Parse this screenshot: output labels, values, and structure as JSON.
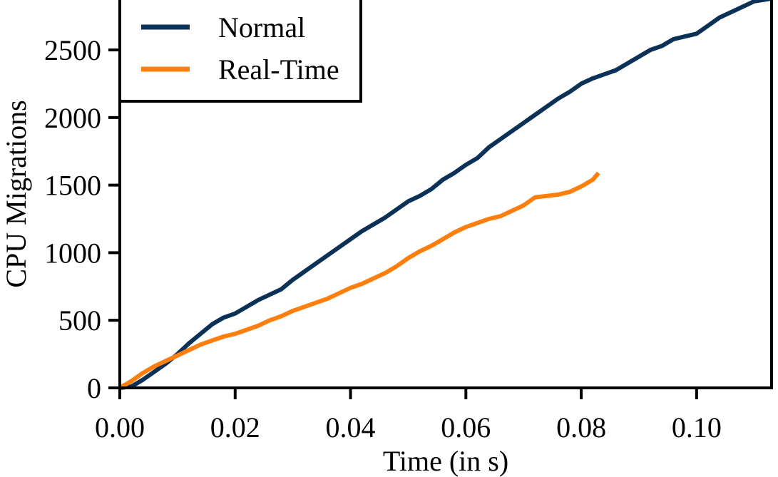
{
  "chart_data": {
    "type": "line",
    "xlabel": "Time (in s)",
    "ylabel": "CPU Migrations",
    "xlim": [
      0,
      0.113
    ],
    "ylim": [
      0,
      2880
    ],
    "xticks": [
      0.0,
      0.02,
      0.04,
      0.06,
      0.08,
      0.1
    ],
    "xtick_labels": [
      "0.00",
      "0.02",
      "0.04",
      "0.06",
      "0.08",
      "0.10"
    ],
    "yticks": [
      0,
      500,
      1000,
      1500,
      2000,
      2500
    ],
    "ytick_labels": [
      "0",
      "500",
      "1000",
      "1500",
      "2000",
      "2500"
    ],
    "grid": false,
    "legend_position": "top-left",
    "series": [
      {
        "name": "Normal",
        "color": "#0b3157",
        "x": [
          0.0,
          0.002,
          0.004,
          0.006,
          0.008,
          0.01,
          0.012,
          0.014,
          0.016,
          0.018,
          0.02,
          0.022,
          0.024,
          0.026,
          0.028,
          0.03,
          0.032,
          0.034,
          0.036,
          0.038,
          0.04,
          0.042,
          0.044,
          0.046,
          0.048,
          0.05,
          0.052,
          0.054,
          0.056,
          0.058,
          0.06,
          0.062,
          0.064,
          0.066,
          0.068,
          0.07,
          0.072,
          0.074,
          0.076,
          0.078,
          0.08,
          0.082,
          0.084,
          0.086,
          0.088,
          0.09,
          0.092,
          0.094,
          0.096,
          0.098,
          0.1,
          0.102,
          0.104,
          0.106,
          0.108,
          0.11,
          0.113
        ],
        "y": [
          0,
          10,
          60,
          120,
          180,
          250,
          330,
          400,
          470,
          520,
          550,
          600,
          650,
          690,
          730,
          800,
          860,
          920,
          980,
          1040,
          1100,
          1160,
          1210,
          1260,
          1320,
          1380,
          1420,
          1470,
          1540,
          1590,
          1650,
          1700,
          1780,
          1840,
          1900,
          1960,
          2020,
          2080,
          2140,
          2190,
          2250,
          2290,
          2320,
          2350,
          2400,
          2450,
          2500,
          2530,
          2580,
          2600,
          2620,
          2680,
          2740,
          2780,
          2820,
          2860,
          2880
        ]
      },
      {
        "name": "Real-Time",
        "color": "#ff7f0e",
        "x": [
          0.0,
          0.002,
          0.004,
          0.006,
          0.008,
          0.01,
          0.012,
          0.014,
          0.016,
          0.018,
          0.02,
          0.022,
          0.024,
          0.026,
          0.028,
          0.03,
          0.032,
          0.034,
          0.036,
          0.038,
          0.04,
          0.042,
          0.044,
          0.046,
          0.048,
          0.05,
          0.052,
          0.054,
          0.056,
          0.058,
          0.06,
          0.062,
          0.064,
          0.066,
          0.068,
          0.07,
          0.072,
          0.074,
          0.076,
          0.078,
          0.08,
          0.082,
          0.083
        ],
        "y": [
          0,
          50,
          110,
          160,
          200,
          240,
          280,
          320,
          350,
          380,
          400,
          430,
          460,
          500,
          530,
          570,
          600,
          630,
          660,
          700,
          740,
          770,
          810,
          850,
          900,
          960,
          1010,
          1050,
          1100,
          1150,
          1190,
          1220,
          1250,
          1270,
          1310,
          1350,
          1410,
          1420,
          1430,
          1450,
          1490,
          1540,
          1590
        ]
      }
    ]
  }
}
